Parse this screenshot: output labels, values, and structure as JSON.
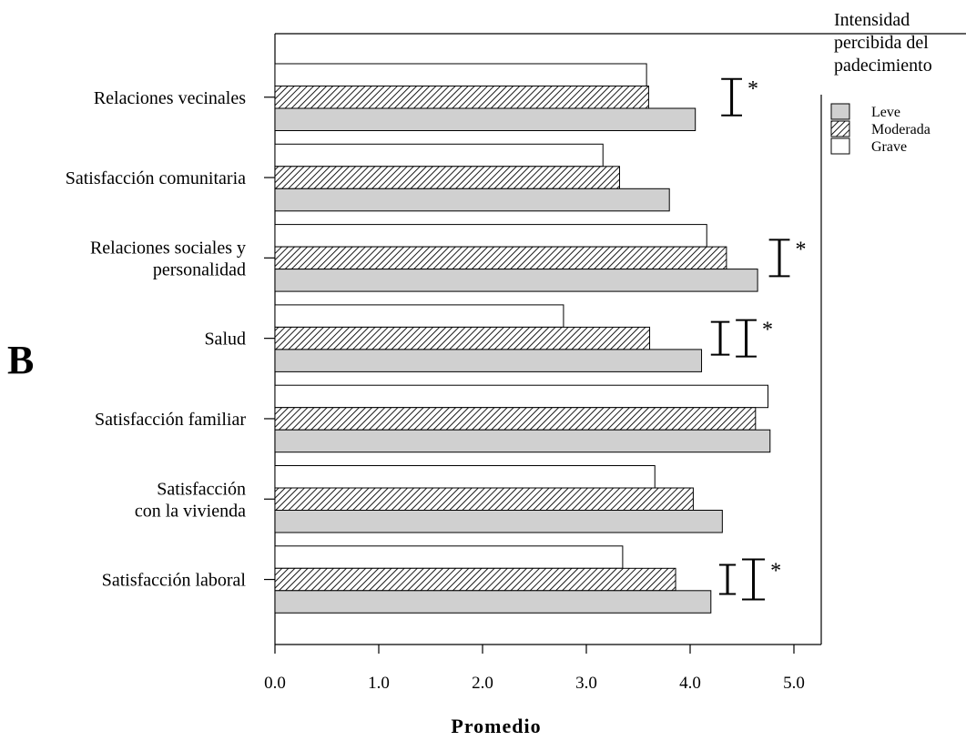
{
  "chart_data": {
    "type": "bar",
    "orientation": "horizontal",
    "panel_label": "B",
    "xlabel": "Promedio",
    "ylabel": "",
    "xlim": [
      0.0,
      5.3
    ],
    "xticks": [
      "0.0",
      "1.0",
      "2.0",
      "3.0",
      "4.0",
      "5.0"
    ],
    "grid": false,
    "legend_position": "top-right",
    "legend_title": [
      "Intensidad",
      "percibida del",
      "padecimiento"
    ],
    "categories": [
      {
        "label": [
          "Relaciones vecinales"
        ],
        "significant": true,
        "star": "*"
      },
      {
        "label": [
          "Satisfacción comunitaria"
        ],
        "significant": false,
        "star": ""
      },
      {
        "label": [
          "Relaciones sociales y",
          "personalidad"
        ],
        "significant": true,
        "star": "*"
      },
      {
        "label": [
          "Salud"
        ],
        "significant": true,
        "star": "*"
      },
      {
        "label": [
          "Satisfacción familiar"
        ],
        "significant": false,
        "star": ""
      },
      {
        "label": [
          "Satisfacción",
          "con la vivienda"
        ],
        "significant": false,
        "star": ""
      },
      {
        "label": [
          "Satisfacción laboral"
        ],
        "significant": true,
        "star": "*"
      }
    ],
    "series": [
      {
        "name": "Leve",
        "color": "#d0d0d0",
        "pattern": "solid-gray",
        "values": [
          4.05,
          3.8,
          4.65,
          4.11,
          4.77,
          4.31,
          4.2
        ]
      },
      {
        "name": "Moderada",
        "color": "#000000",
        "pattern": "diagonal-hatch",
        "values": [
          3.6,
          3.32,
          4.35,
          3.61,
          4.63,
          4.03,
          3.86
        ]
      },
      {
        "name": "Grave",
        "color": "#ffffff",
        "pattern": "white",
        "values": [
          3.58,
          3.16,
          4.16,
          2.78,
          4.75,
          3.66,
          3.35
        ]
      }
    ],
    "significance_brackets": [
      {
        "category": 0,
        "lo": 4.3,
        "hi": 4.5
      },
      {
        "category": 2,
        "lo": 4.76,
        "hi": 4.96
      },
      {
        "category": 3,
        "lo": 4.2,
        "hi": 4.38
      },
      {
        "category": 3,
        "lo": 4.44,
        "hi": 4.64
      },
      {
        "category": 6,
        "lo": 4.28,
        "hi": 4.44
      },
      {
        "category": 6,
        "lo": 4.5,
        "hi": 4.72
      }
    ]
  }
}
